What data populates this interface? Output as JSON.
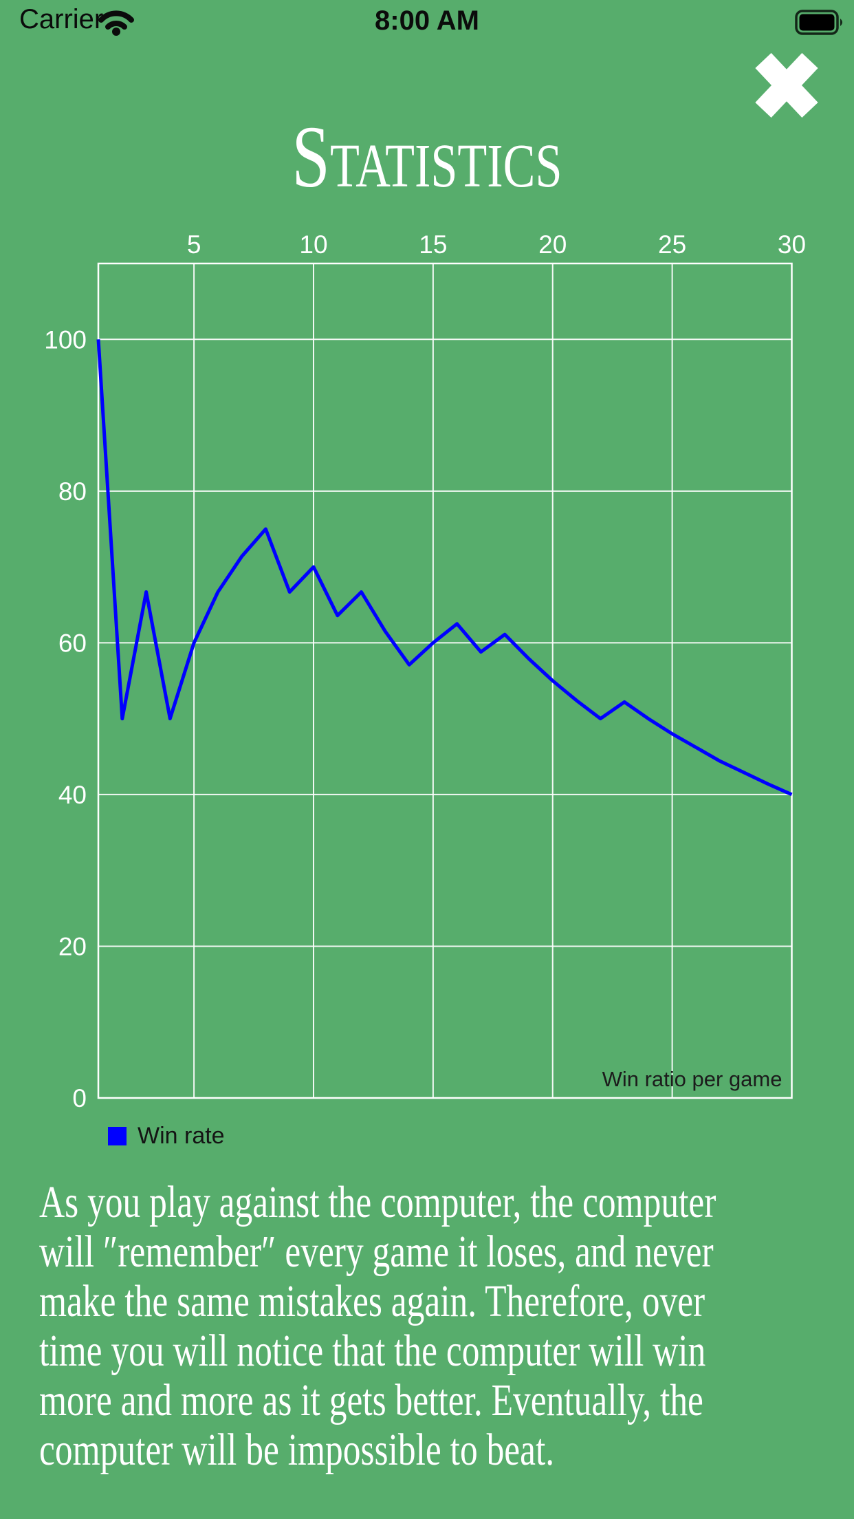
{
  "status_bar": {
    "carrier": "Carrier",
    "time": "8:00 AM"
  },
  "header": {
    "title": "Statistics"
  },
  "colors": {
    "background": "#57AD6C",
    "grid": "#FFFFFF",
    "line": "#0000FF",
    "axis_text": "#FFFFFF",
    "annotation_text": "#1C1C1C",
    "legend_text": "#141414",
    "status_text": "#0B0B0B",
    "title_text": "#FFFFFF",
    "body_text": "#FFFFFF"
  },
  "chart_data": {
    "type": "line",
    "title": "Win ratio per game",
    "xlabel": "",
    "ylabel": "",
    "xlim": [
      1,
      30
    ],
    "ylim": [
      0,
      110
    ],
    "grid": true,
    "x_ticks": [
      5,
      10,
      15,
      20,
      25,
      30
    ],
    "y_ticks": [
      0,
      20,
      40,
      60,
      80,
      100
    ],
    "legend_position": "bottom-left",
    "series": [
      {
        "name": "Win rate",
        "color": "#0000FF",
        "x": [
          1,
          2,
          3,
          4,
          5,
          6,
          7,
          8,
          9,
          10,
          11,
          12,
          13,
          14,
          15,
          16,
          17,
          18,
          19,
          20,
          21,
          22,
          23,
          24,
          25,
          26,
          27,
          28,
          29,
          30
        ],
        "values": [
          100,
          50,
          66.7,
          50,
          60,
          66.7,
          71.4,
          75,
          66.7,
          70,
          63.6,
          66.7,
          61.5,
          57.1,
          60,
          62.5,
          58.8,
          61.1,
          57.9,
          55,
          52.4,
          50,
          52.2,
          50,
          48,
          46.2,
          44.4,
          42.9,
          41.4,
          40
        ]
      }
    ]
  },
  "legend": {
    "label": "Win rate"
  },
  "description": {
    "lines": [
      "As you play against the computer, the computer",
      "will ″remember″ every game it loses, and never",
      "make the same mistakes again. Therefore, over",
      "time you will notice that the computer will win",
      "more and more as it gets better. Eventually, the",
      "computer will be impossible to beat."
    ]
  }
}
